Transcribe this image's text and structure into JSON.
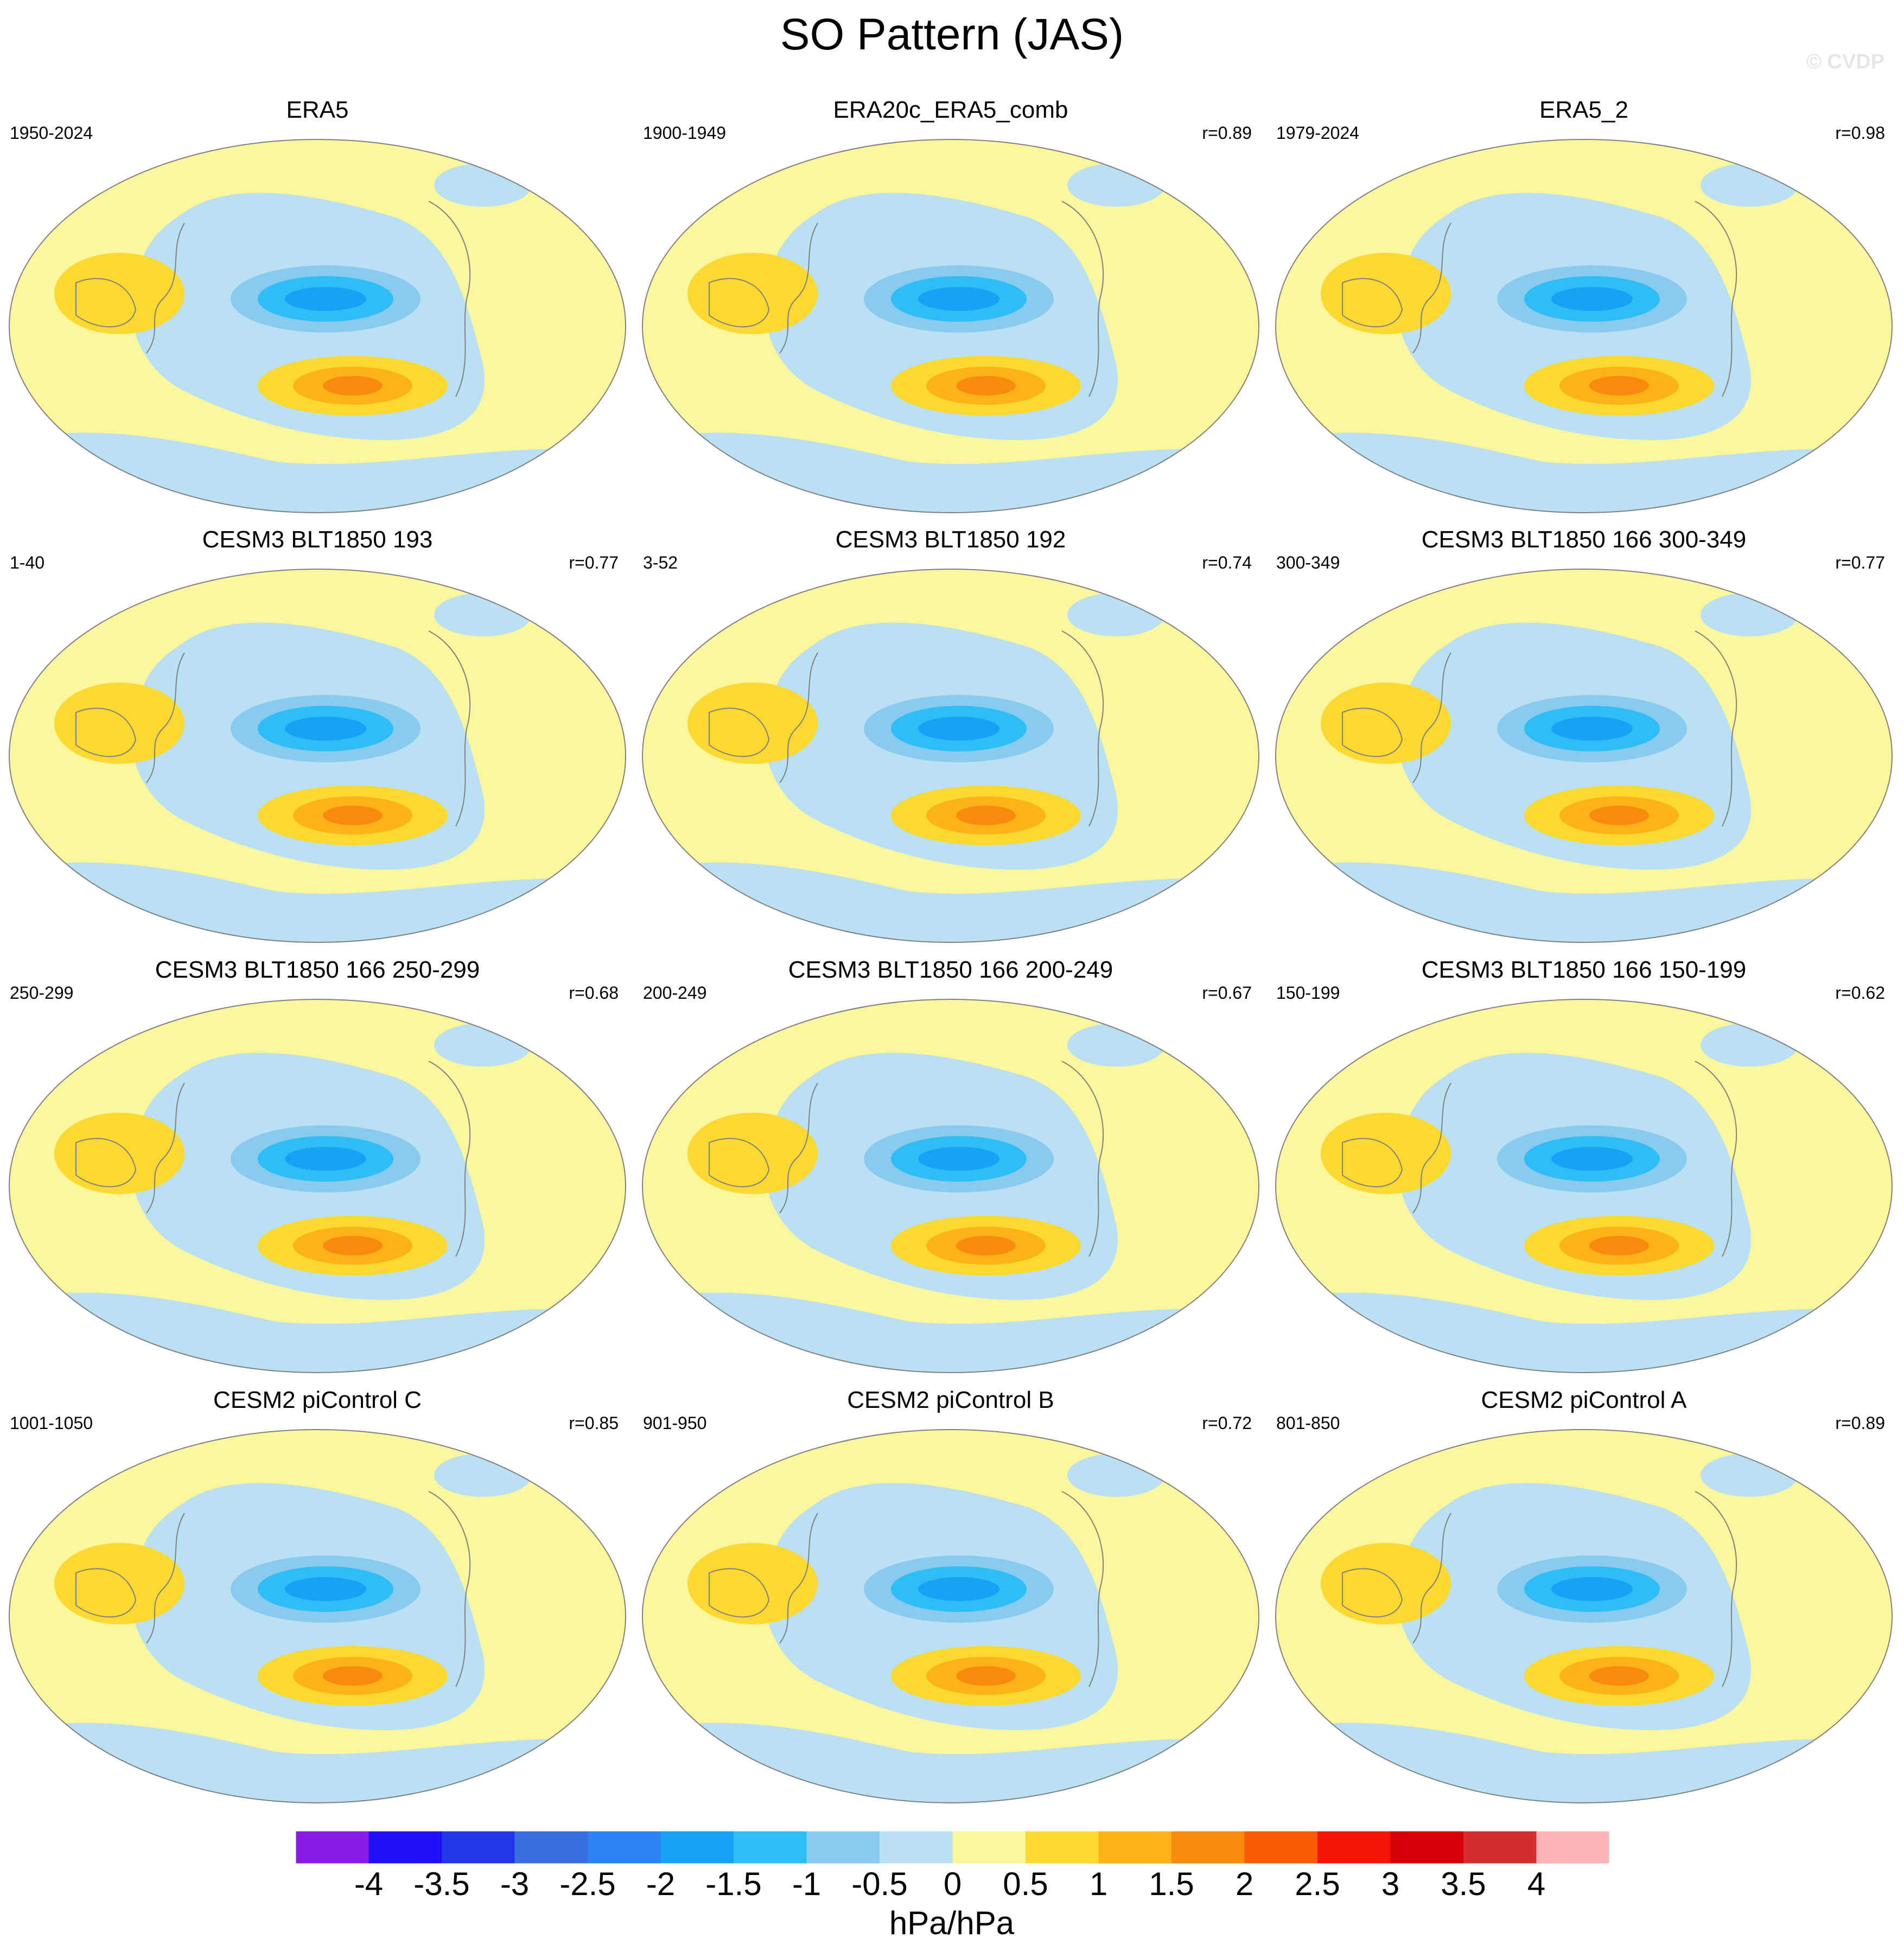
{
  "title": "SO Pattern (JAS)",
  "watermark": "© CVDP",
  "chart_data": {
    "type": "heatmap",
    "title": "SO Pattern (JAS)",
    "projection": "global map, Pacific-centered",
    "units": "hPa/hPa",
    "panels": [
      {
        "name": "ERA5",
        "years": "1950-2024",
        "r": null
      },
      {
        "name": "ERA20c_ERA5_comb",
        "years": "1900-1949",
        "r": "r=0.89"
      },
      {
        "name": "ERA5_2",
        "years": "1979-2024",
        "r": "r=0.98"
      },
      {
        "name": "CESM3 BLT1850 193",
        "years": "1-40",
        "r": "r=0.77"
      },
      {
        "name": "CESM3 BLT1850 192",
        "years": "3-52",
        "r": "r=0.74"
      },
      {
        "name": "CESM3 BLT1850 166 300-349",
        "years": "300-349",
        "r": "r=0.77"
      },
      {
        "name": "CESM3 BLT1850 166 250-299",
        "years": "250-299",
        "r": "r=0.68"
      },
      {
        "name": "CESM3 BLT1850 166 200-249",
        "years": "200-249",
        "r": "r=0.67"
      },
      {
        "name": "CESM3 BLT1850 166 150-199",
        "years": "150-199",
        "r": "r=0.62"
      },
      {
        "name": "CESM2 piControl C",
        "years": "1001-1050",
        "r": "r=0.85"
      },
      {
        "name": "CESM2 piControl B",
        "years": "901-950",
        "r": "r=0.72"
      },
      {
        "name": "CESM2 piControl A",
        "years": "801-850",
        "r": "r=0.89"
      }
    ],
    "colorbar": {
      "label": "hPa/hPa",
      "ticks": [
        "-4",
        "-3.5",
        "-3",
        "-2.5",
        "-2",
        "-1.5",
        "-1",
        "-0.5",
        "0",
        "0.5",
        "1",
        "1.5",
        "2",
        "2.5",
        "3",
        "3.5",
        "4"
      ],
      "colors": [
        "#8a1be8",
        "#1f10f5",
        "#2137e6",
        "#3a6ddf",
        "#2c83f0",
        "#17a2f5",
        "#2dbef6",
        "#8acaee",
        "#b9e1f3",
        "#fcf69c",
        "#fcd930",
        "#fbb318",
        "#f98a0e",
        "#f85a06",
        "#f51408",
        "#d40108",
        "#d42d2d",
        "#fcb4b5"
      ]
    }
  }
}
